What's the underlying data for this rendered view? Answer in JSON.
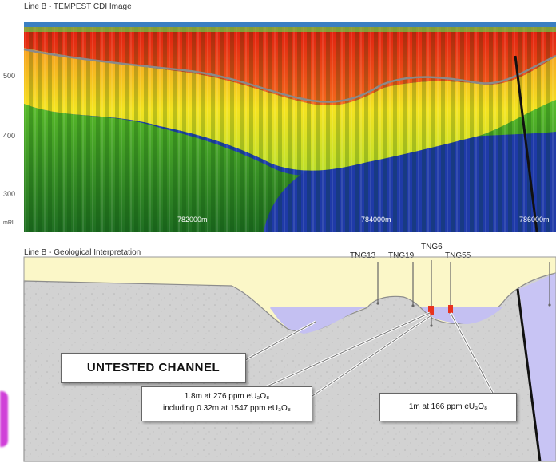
{
  "cdi_panel": {
    "title": "Line B - TEMPEST CDI Image",
    "y_ticks": [
      "500",
      "400",
      "300"
    ],
    "y_unit": "mRL",
    "x_ticks": [
      "782000m",
      "784000m",
      "786000m"
    ]
  },
  "geo_panel": {
    "title": "Line B - Geological Interpretation",
    "drillholes": [
      "TNG13",
      "TNG19",
      "TNG6",
      "TNG55"
    ],
    "untested_label": "UNTESTED CHANNEL",
    "callout_a_line1": "1.8m at 276 ppm eU₃O₈",
    "callout_a_line2": "including 0.32m at 1547 ppm eU₃O₈",
    "callout_b": "1m at 166 ppm eU₃O₈"
  },
  "colors": {
    "cover": "#fbf7c8",
    "basement": "#d4d4d4",
    "channel": "#c4c0f2",
    "intercept": "#e8331f",
    "cdi_red": "#e8331f",
    "cdi_blue": "#1e3fb0",
    "cdi_green": "#2f8a2f"
  }
}
